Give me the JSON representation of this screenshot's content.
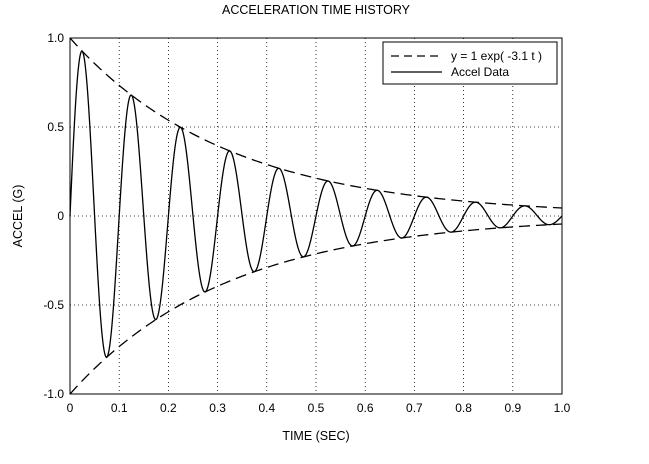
{
  "chart_data": {
    "type": "line",
    "title": "ACCELERATION TIME HISTORY",
    "xlabel": "TIME (SEC)",
    "ylabel": "ACCEL (G)",
    "xlim": [
      0,
      1.0
    ],
    "ylim": [
      -1.0,
      1.0
    ],
    "grid": true,
    "legend_position": "top-right",
    "x_ticks": [
      0,
      0.1,
      0.2,
      0.3,
      0.4,
      0.5,
      0.6,
      0.7,
      0.8,
      0.9,
      1.0
    ],
    "x_tick_labels": [
      "0",
      "0.1",
      "0.2",
      "0.3",
      "0.4",
      "0.5",
      "0.6",
      "0.7",
      "0.8",
      "0.9",
      "1.0"
    ],
    "y_ticks": [
      -1.0,
      -0.5,
      0,
      0.5,
      1.0
    ],
    "y_tick_labels": [
      "-1.0",
      "-0.5",
      "0",
      "0.5",
      "1.0"
    ],
    "series": [
      {
        "name": "y = 1 exp( -3.1 t )",
        "style": "dashed",
        "color": "#000000",
        "kind": "envelope",
        "amplitude": 1.0,
        "decay_rate": 3.1,
        "mirrored": true,
        "num_points": 201
      },
      {
        "name": "Accel Data",
        "style": "solid",
        "color": "#000000",
        "kind": "damped_sine",
        "amplitude": 1.0,
        "decay_rate": 3.1,
        "frequency_hz": 10,
        "num_points": 1001
      }
    ]
  }
}
